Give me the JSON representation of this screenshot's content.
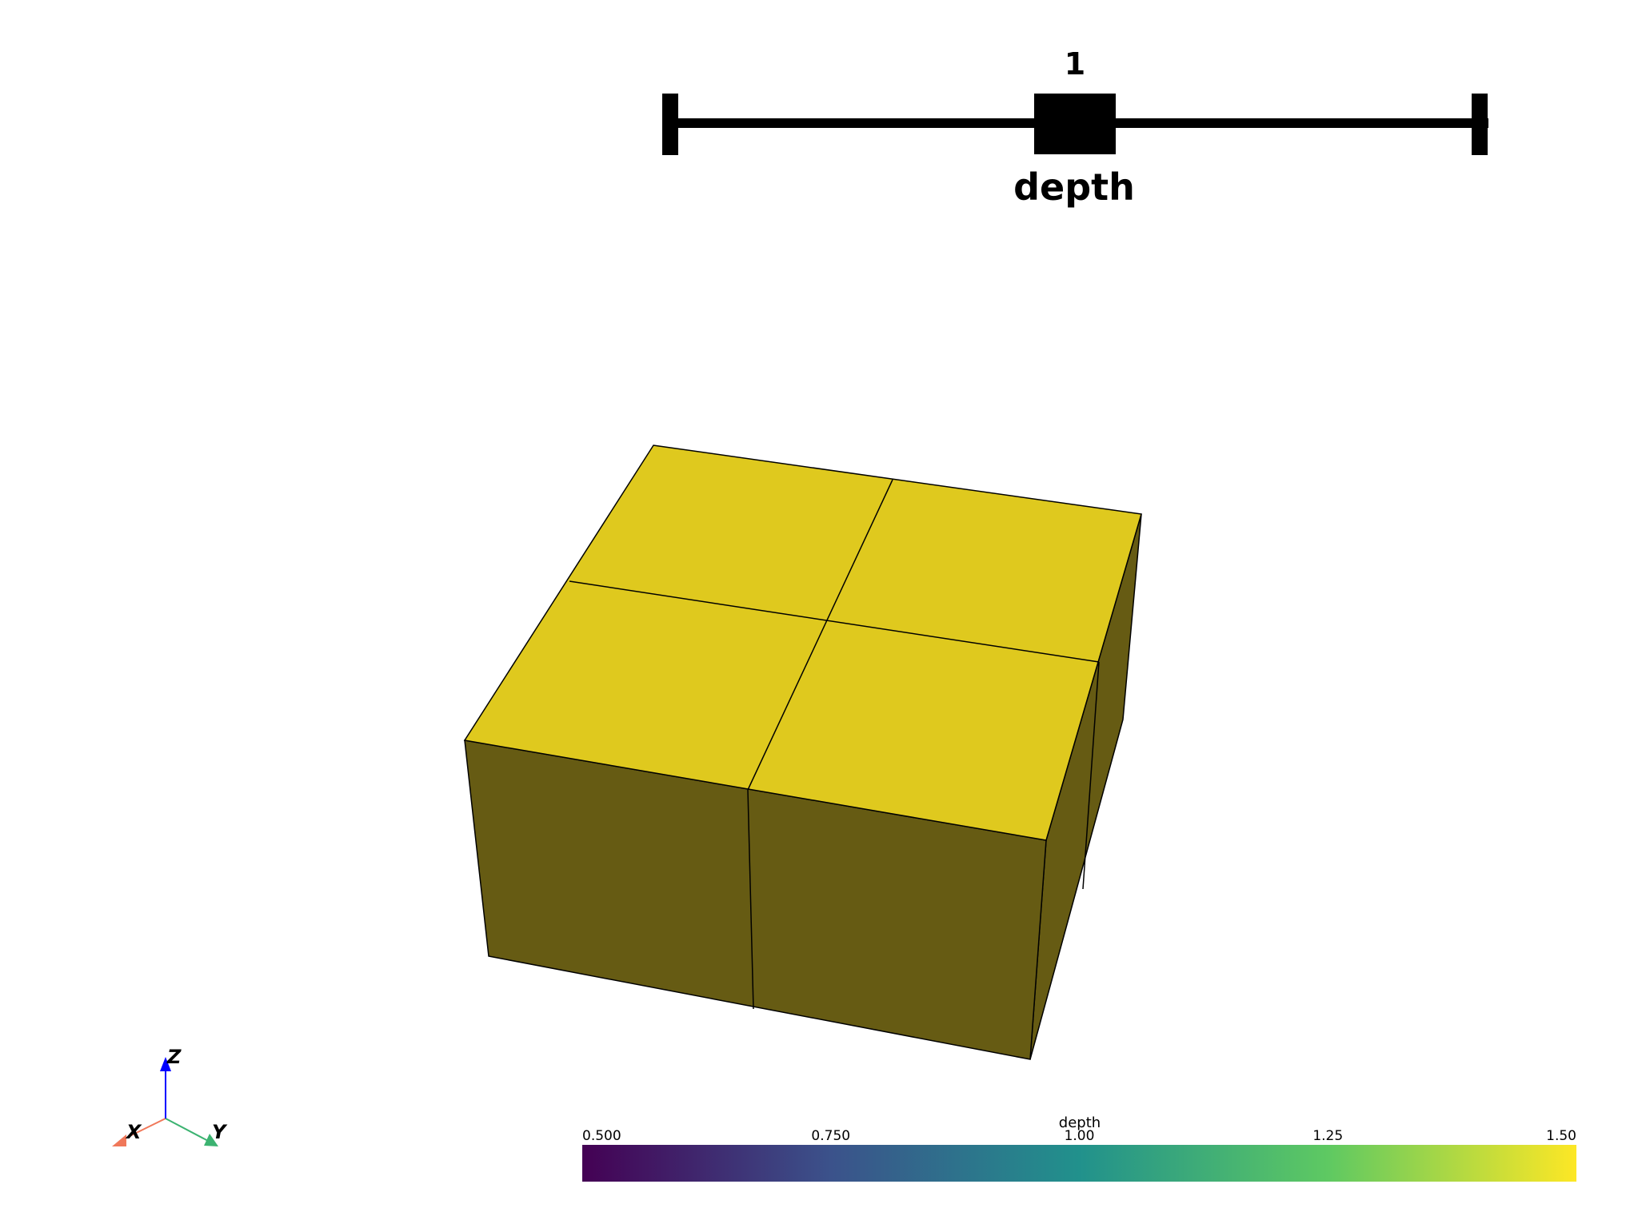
{
  "slider": {
    "value": 1,
    "value_label": "1",
    "min": 0.5,
    "max": 1.5,
    "title": "depth"
  },
  "mesh": {
    "top_color": "#dfc91e",
    "side_color": "#665b13",
    "edge_color": "#000000"
  },
  "scalar_bar": {
    "title": "depth",
    "colormap": "viridis",
    "range": [
      0.5,
      1.5
    ],
    "ticks": [
      "0.500",
      "0.750",
      "1.00",
      "1.25",
      "1.50"
    ],
    "gradient_stops": [
      "#440154",
      "#3b528b",
      "#21918c",
      "#5ec962",
      "#fde725"
    ]
  },
  "axes_widget": {
    "x_label": "X",
    "y_label": "Y",
    "z_label": "Z",
    "x_color": "#f0785a",
    "y_color": "#3cb371",
    "z_color": "#0000ff"
  }
}
